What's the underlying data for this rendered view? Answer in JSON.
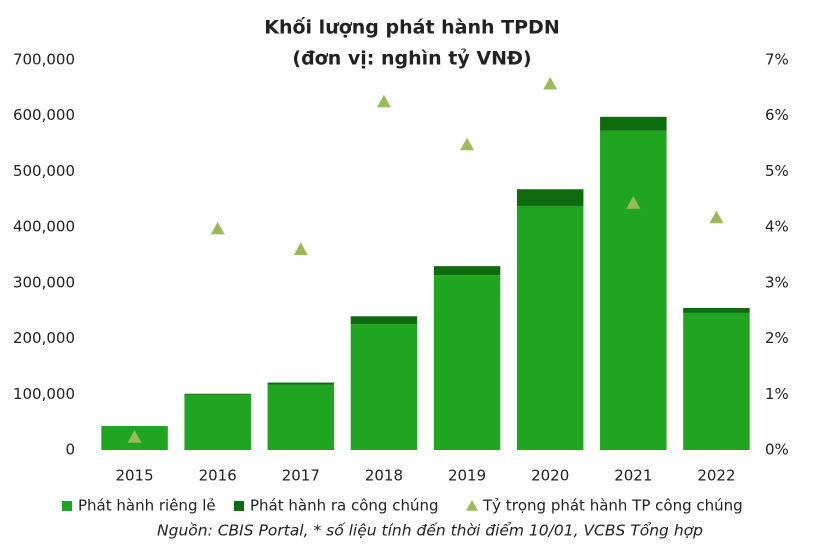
{
  "chart_data": {
    "type": "bar",
    "stacked": true,
    "title": "Khối lượng phát hành TPDN",
    "subtitle": "(đơn vị: nghìn tỷ VNĐ)",
    "note": "Nguồn: CBIS Portal, * số liệu tính đến thời điểm 10/01, VCBS Tổng hợp",
    "categories": [
      "2015",
      "2016",
      "2017",
      "2018",
      "2019",
      "2020",
      "2021",
      "2022"
    ],
    "series": [
      {
        "name": "Phát hành riêng lẻ",
        "color": "#1fa51f",
        "values": [
          43000,
          99000,
          117000,
          226000,
          314000,
          438000,
          573000,
          246000
        ]
      },
      {
        "name": "Phát hành ra công chúng",
        "color": "#0e6b0e",
        "values": [
          0,
          2000,
          4000,
          14000,
          16000,
          30000,
          25000,
          9000
        ]
      },
      {
        "name": "Tỷ trọng phát hành TP công chúng",
        "color": "#9bbb59",
        "axis": "y2",
        "marker": "triangle",
        "values": [
          0.23,
          3.97,
          3.6,
          6.25,
          5.48,
          6.57,
          4.43,
          4.17
        ]
      }
    ],
    "ylim": [
      0,
      700000
    ],
    "yticks": [
      0,
      {
        "value": 100000,
        "label": "100,000"
      },
      {
        "value": 200000,
        "label": "200,000"
      },
      {
        "value": 300000,
        "label": "300,000"
      },
      {
        "value": 400000,
        "label": "400,000"
      },
      {
        "value": 500000,
        "label": "500,000"
      },
      {
        "value": 600000,
        "label": "600,000"
      },
      {
        "value": 700000,
        "label": "700,000"
      }
    ],
    "y2lim": [
      0,
      7
    ],
    "y2ticks": [
      {
        "value": 0,
        "label": "0%"
      },
      {
        "value": 1,
        "label": "1%"
      },
      {
        "value": 2,
        "label": "2%"
      },
      {
        "value": 3,
        "label": "3%"
      },
      {
        "value": 4,
        "label": "4%"
      },
      {
        "value": 5,
        "label": "5%"
      },
      {
        "value": 6,
        "label": "6%"
      },
      {
        "value": 7,
        "label": "7%"
      }
    ],
    "legend": "bottom"
  }
}
